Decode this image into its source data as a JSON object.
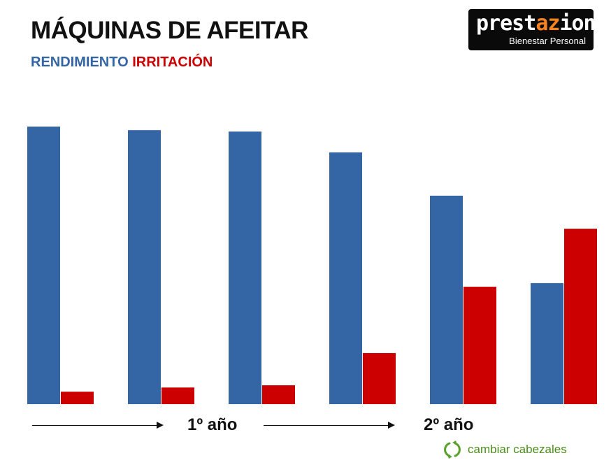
{
  "header": {
    "title": "MÁQUINAS DE AFEITAR",
    "legend_rendimiento": "RENDIMIENTO",
    "legend_irritacion": "IRRITACIÓN"
  },
  "logo": {
    "brand_prefix": "prest",
    "brand_accent": "az",
    "brand_suffix": "ion",
    "tagline": "Bienestar Personal"
  },
  "timeline": {
    "period_1": "1º año",
    "period_2": "2º año",
    "note": "cambiar cabezales",
    "note_icon": "refresh-icon"
  },
  "colors": {
    "rendimiento": "#3465a4",
    "irritacion": "#cc0000",
    "note": "#4c8c1f",
    "logo_accent": "#f5821f"
  },
  "chart_data": {
    "type": "bar",
    "categories": [
      "",
      "",
      "",
      "",
      "",
      ""
    ],
    "series": [
      {
        "name": "RENDIMIENTO",
        "values": [
          100,
          98.7,
          98.2,
          90.7,
          75.1,
          43.6
        ]
      },
      {
        "name": "IRRITACIÓN",
        "values": [
          4.5,
          6.0,
          6.8,
          18.4,
          42.3,
          63.2
        ]
      }
    ],
    "title": "MÁQUINAS DE AFEITAR",
    "xlabel": "",
    "ylabel": "",
    "ylim": [
      0,
      100
    ],
    "grid": false,
    "axes_visible": false,
    "legend": "top-left"
  }
}
